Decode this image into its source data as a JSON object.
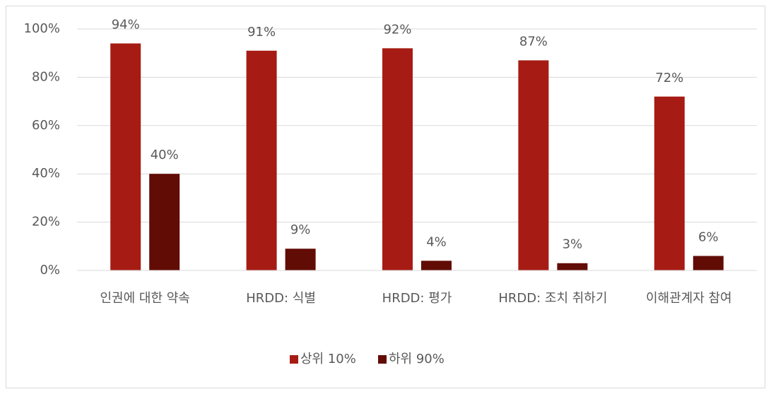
{
  "chart_data": {
    "type": "bar",
    "categories": [
      "인권에 대한 약속",
      "HRDD: 식별",
      "HRDD: 평가",
      "HRDD: 조치 취하기",
      "이해관계자 참여"
    ],
    "series": [
      {
        "name": "상위 10%",
        "color": "#a61c14",
        "values": [
          94,
          91,
          92,
          87,
          72
        ],
        "value_labels": [
          "94%",
          "91%",
          "92%",
          "87%",
          "72%"
        ]
      },
      {
        "name": "하위 90%",
        "color": "#620c06",
        "values": [
          40,
          9,
          4,
          3,
          6
        ],
        "value_labels": [
          "40%",
          "9%",
          "4%",
          "3%",
          "6%"
        ]
      }
    ],
    "ylim": [
      0,
      100
    ],
    "yticks": [
      {
        "value": 0,
        "label": "0%"
      },
      {
        "value": 20,
        "label": "20%"
      },
      {
        "value": 40,
        "label": "40%"
      },
      {
        "value": 60,
        "label": "60%"
      },
      {
        "value": 80,
        "label": "80%"
      },
      {
        "value": 100,
        "label": "100%"
      }
    ],
    "grid": true,
    "legend": "bottom"
  }
}
